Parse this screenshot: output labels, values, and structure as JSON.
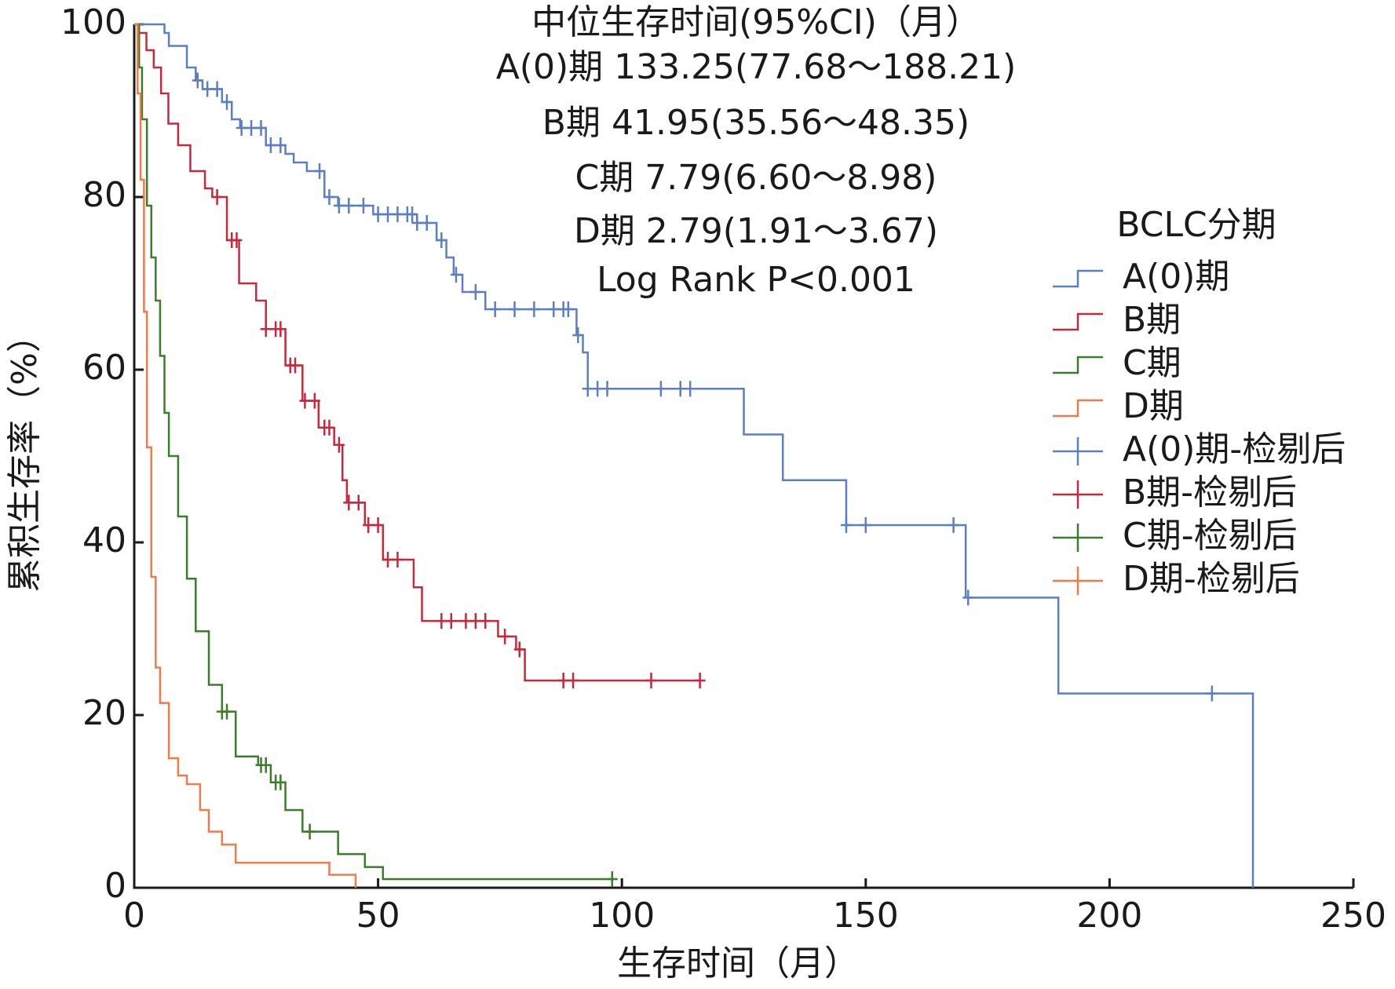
{
  "chart_data": {
    "type": "step",
    "annotations": [
      "中位生存时间(95%CI)（月）",
      "A(0)期 133.25(77.68～188.21)",
      "B期 41.95(35.56～48.35)",
      "C期 7.79(6.60～8.98)",
      "D期 2.79(1.91～3.67)",
      "Log Rank P<0.001"
    ],
    "x_label": "生存时间（月）",
    "y_label": "累积生存率（%）",
    "legend_title": "BCLC分期",
    "legend": "right",
    "xlim": [
      0,
      250
    ],
    "xticks": [
      0,
      50,
      100,
      150,
      200,
      250
    ],
    "ylim": [
      0,
      100
    ],
    "yticks": [
      0,
      20,
      40,
      60,
      80,
      100
    ],
    "series": [
      {
        "name": "A(0)期",
        "kind": "step",
        "color": "#5b7fc0",
        "x": [
          0,
          6.2,
          7.1,
          10.8,
          12.6,
          14,
          18,
          20,
          21.7,
          27,
          31,
          32.7,
          35.4,
          39,
          41.8,
          49,
          58,
          62,
          64,
          65.5,
          67.3,
          72,
          90.7,
          92,
          93,
          125,
          133,
          146,
          170.5,
          189.5,
          229.4
        ],
        "values": [
          100,
          99,
          97.5,
          95,
          93.5,
          92.5,
          91,
          89,
          88,
          86,
          85,
          84,
          83,
          80,
          79,
          78,
          77,
          75,
          73,
          71,
          69,
          67,
          64,
          62,
          57.8,
          52.5,
          47.2,
          42,
          33.6,
          22.5,
          0
        ]
      },
      {
        "name": "B期",
        "kind": "step",
        "color": "#c8283c",
        "x": [
          0,
          1,
          2.5,
          4,
          5.5,
          7,
          9,
          11.5,
          14.5,
          16,
          19,
          21.5,
          25,
          27,
          31,
          34.5,
          37.8,
          41,
          42.7,
          43.6,
          47.3,
          51,
          57.3,
          59,
          74.6,
          78.3,
          80.1,
          116.2
        ],
        "values": [
          100,
          99,
          97,
          95,
          92,
          88.5,
          86,
          83,
          81,
          80,
          75,
          70,
          68,
          64.7,
          60.5,
          56.4,
          53.3,
          51.3,
          47.2,
          44.6,
          42,
          38,
          34.8,
          30.9,
          29.1,
          27.6,
          24,
          24
        ]
      },
      {
        "name": "C期",
        "kind": "step",
        "color": "#3a7d2a",
        "x": [
          0,
          1,
          1.6,
          2.6,
          3.5,
          4.4,
          5.3,
          6.2,
          7.1,
          9,
          10.8,
          12.6,
          15.3,
          18,
          20.8,
          25.4,
          28,
          31,
          34.5,
          41.8,
          47.3,
          51,
          98.4
        ],
        "values": [
          100,
          95,
          89,
          79,
          73,
          68,
          61.6,
          55,
          50,
          43,
          35.8,
          29.7,
          23.5,
          20.4,
          15.2,
          14.2,
          12.2,
          9,
          6.5,
          3.9,
          2.4,
          1,
          1
        ]
      },
      {
        "name": "D期",
        "kind": "step",
        "color": "#f07a4a",
        "x": [
          0,
          0.7,
          1.3,
          2,
          2.6,
          3.5,
          4.4,
          5.3,
          7.1,
          9,
          10.8,
          13.5,
          15.3,
          18,
          20.8,
          40,
          45.4
        ],
        "values": [
          100,
          92,
          82,
          66.7,
          51,
          36,
          25.5,
          21.4,
          15,
          13,
          12,
          9,
          6.5,
          5,
          2.9,
          1.5,
          0
        ]
      },
      {
        "name": "A(0)期-检剔后",
        "kind": "censor",
        "color": "#5b7fc0",
        "x": [
          13,
          15,
          17,
          19,
          22,
          24,
          26,
          28,
          30,
          38,
          40,
          42,
          44,
          47,
          50,
          52,
          54,
          56,
          57,
          58,
          60,
          63,
          66,
          70,
          74,
          78,
          82,
          86,
          88,
          89,
          91,
          93,
          95,
          97,
          108,
          112,
          114,
          146,
          150,
          168,
          171,
          221
        ],
        "values": [
          93.5,
          92.5,
          92.5,
          91,
          88,
          88,
          88,
          86,
          86,
          83,
          80,
          79,
          79,
          79,
          78,
          78,
          78,
          78,
          78,
          77,
          77,
          75,
          71,
          69,
          67,
          67,
          67,
          67,
          67,
          67,
          64,
          57.8,
          57.8,
          57.8,
          57.8,
          57.8,
          57.8,
          42,
          42,
          42,
          33.6,
          22.5
        ]
      },
      {
        "name": "B期-检剔后",
        "kind": "censor",
        "color": "#c8283c",
        "x": [
          17,
          20,
          21,
          27,
          29,
          30,
          32,
          33,
          35,
          37,
          39,
          40,
          42,
          44,
          46,
          48,
          50,
          52,
          54,
          63,
          65,
          68,
          70,
          72,
          76,
          79,
          88,
          90,
          106,
          116
        ],
        "values": [
          80,
          75,
          75,
          64.7,
          64.7,
          64.7,
          60.5,
          60.5,
          56.4,
          56.4,
          53.3,
          53.3,
          51.3,
          44.6,
          44.6,
          42,
          42,
          38,
          38,
          30.9,
          30.9,
          30.9,
          30.9,
          30.9,
          29.1,
          27.6,
          24,
          24,
          24,
          24
        ]
      },
      {
        "name": "C期-检剔后",
        "kind": "censor",
        "color": "#3a7d2a",
        "x": [
          18,
          19,
          26,
          27,
          29,
          30,
          36,
          98
        ],
        "values": [
          20.4,
          20.4,
          14.2,
          14.2,
          12.2,
          12.2,
          6.5,
          1
        ]
      },
      {
        "name": "D期-检剔后",
        "kind": "censor",
        "color": "#f07a4a",
        "x": [],
        "values": []
      }
    ]
  }
}
